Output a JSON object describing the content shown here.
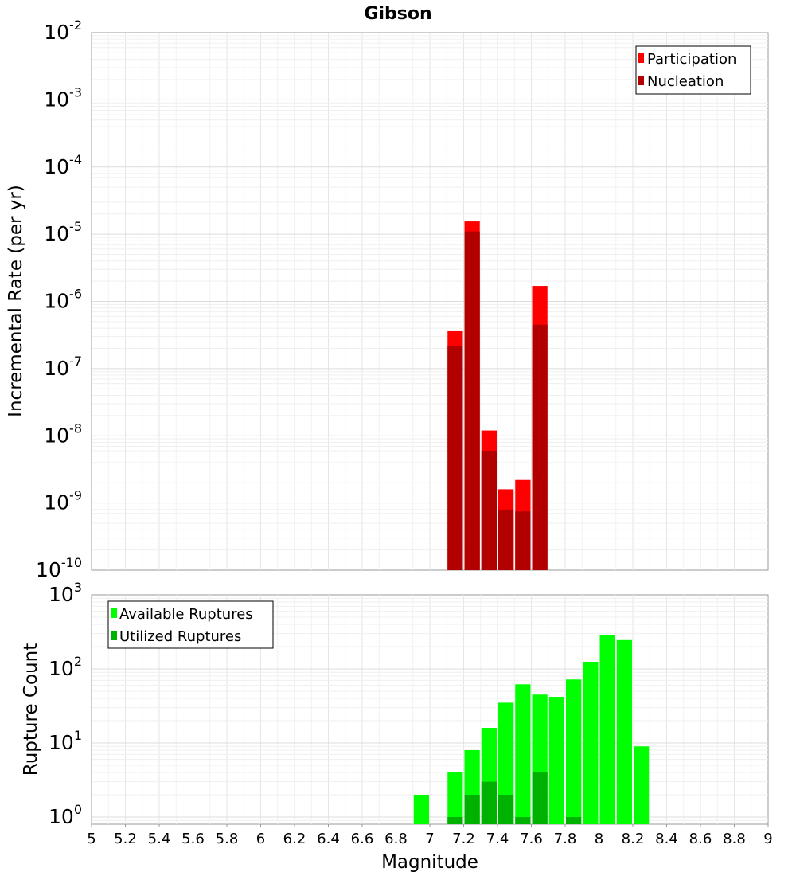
{
  "chart_data": [
    {
      "type": "bar",
      "title": "Gibson",
      "xlabel": "",
      "ylabel": "Incremental Rate (per yr)",
      "yscale": "log",
      "ylim": [
        1e-10,
        0.01
      ],
      "xlim": [
        5,
        9
      ],
      "bar_width": 0.1,
      "y_ticks": [
        {
          "base": "10",
          "exp": "-10"
        },
        {
          "base": "10",
          "exp": "-9"
        },
        {
          "base": "10",
          "exp": "-8"
        },
        {
          "base": "10",
          "exp": "-7"
        },
        {
          "base": "10",
          "exp": "-6"
        },
        {
          "base": "10",
          "exp": "-5"
        },
        {
          "base": "10",
          "exp": "-4"
        },
        {
          "base": "10",
          "exp": "-3"
        },
        {
          "base": "10",
          "exp": "-2"
        }
      ],
      "legend_position": "top-right",
      "series": [
        {
          "name": "Participation",
          "color": "#ff0000",
          "x": [
            7.15,
            7.25,
            7.35,
            7.45,
            7.55,
            7.65
          ],
          "values": [
            3.6e-07,
            1.55e-05,
            1.2e-08,
            1.6e-09,
            2.2e-09,
            1.7e-06
          ]
        },
        {
          "name": "Nucleation",
          "color": "#b20000",
          "x": [
            7.15,
            7.25,
            7.35,
            7.45,
            7.55,
            7.65
          ],
          "values": [
            2.2e-07,
            1.1e-05,
            6e-09,
            8e-10,
            7.5e-10,
            4.5e-07
          ]
        }
      ]
    },
    {
      "type": "bar",
      "title": "",
      "xlabel": "Magnitude",
      "ylabel": "Rupture Count",
      "yscale": "log",
      "ylim": [
        0.8,
        1000
      ],
      "xlim": [
        5,
        9
      ],
      "bar_width": 0.1,
      "x_ticks": [
        "5",
        "5.2",
        "5.4",
        "5.6",
        "5.8",
        "6",
        "6.2",
        "6.4",
        "6.6",
        "6.8",
        "7",
        "7.2",
        "7.4",
        "7.6",
        "7.8",
        "8",
        "8.2",
        "8.4",
        "8.6",
        "8.8",
        "9"
      ],
      "y_ticks": [
        {
          "base": "10",
          "exp": "0"
        },
        {
          "base": "10",
          "exp": "1"
        },
        {
          "base": "10",
          "exp": "2"
        },
        {
          "base": "10",
          "exp": "3"
        }
      ],
      "legend_position": "top-left",
      "series": [
        {
          "name": "Available Ruptures",
          "color": "#00ff00",
          "x": [
            6.95,
            7.15,
            7.25,
            7.35,
            7.45,
            7.55,
            7.65,
            7.75,
            7.85,
            7.95,
            8.05,
            8.15,
            8.25
          ],
          "values": [
            2,
            4,
            8,
            16,
            35,
            62,
            45,
            42,
            72,
            125,
            290,
            245,
            9
          ]
        },
        {
          "name": "Utilized Ruptures",
          "color": "#00b200",
          "x": [
            7.15,
            7.25,
            7.35,
            7.45,
            7.55,
            7.65,
            7.85
          ],
          "values": [
            1,
            2,
            3,
            2,
            1,
            4,
            1
          ]
        }
      ]
    }
  ]
}
